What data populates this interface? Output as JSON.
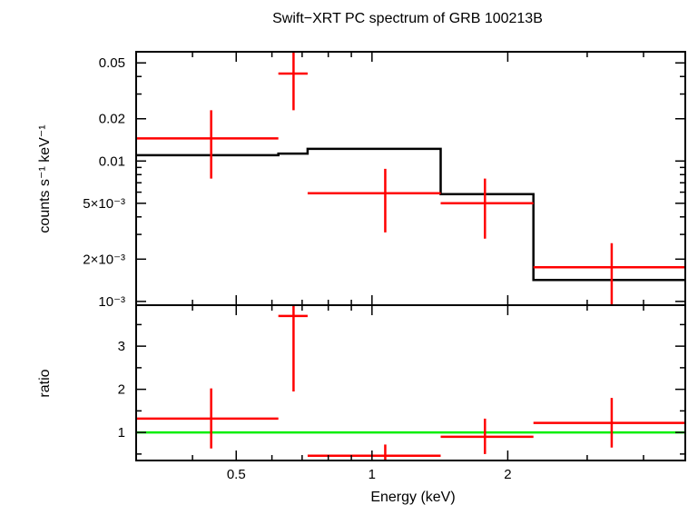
{
  "chart_data": [
    {
      "panel": "spectrum",
      "type": "step-with-errorbars",
      "title": "Swift−XRT PC spectrum of GRB 100213B",
      "xlabel": "",
      "ylabel": "counts s⁻¹ keV⁻¹",
      "xscale": "log",
      "yscale": "log",
      "xlim": [
        0.3,
        4.95
      ],
      "ylim": [
        0.00094,
        0.06
      ],
      "yticks": [
        {
          "value": 0.05,
          "label": "0.05"
        },
        {
          "value": 0.02,
          "label": "0.02"
        },
        {
          "value": 0.01,
          "label": "0.01"
        },
        {
          "value": 0.005,
          "label": "5×10⁻³"
        },
        {
          "value": 0.002,
          "label": "2×10⁻³"
        },
        {
          "value": 0.001,
          "label": "10⁻³"
        }
      ],
      "data": {
        "color": "#ff0000",
        "points": [
          {
            "x_lo": 0.3,
            "x_hi": 0.62,
            "x": 0.44,
            "y": 0.0145,
            "y_lo": 0.0075,
            "y_hi": 0.023
          },
          {
            "x_lo": 0.62,
            "x_hi": 0.72,
            "x": 0.67,
            "y": 0.042,
            "y_lo": 0.023,
            "y_hi": 0.06
          },
          {
            "x_lo": 0.72,
            "x_hi": 1.42,
            "x": 1.07,
            "y": 0.0059,
            "y_lo": 0.0031,
            "y_hi": 0.0088
          },
          {
            "x_lo": 1.42,
            "x_hi": 2.28,
            "x": 1.78,
            "y": 0.005,
            "y_lo": 0.0028,
            "y_hi": 0.0075
          },
          {
            "x_lo": 2.28,
            "x_hi": 4.95,
            "x": 3.4,
            "y": 0.00175,
            "y_lo": 0.00094,
            "y_hi": 0.0026
          }
        ]
      },
      "model": {
        "color": "#000000",
        "steps": [
          {
            "x_lo": 0.3,
            "x_hi": 0.62,
            "y": 0.011
          },
          {
            "x_lo": 0.62,
            "x_hi": 0.72,
            "y": 0.0113
          },
          {
            "x_lo": 0.72,
            "x_hi": 1.42,
            "y": 0.0122
          },
          {
            "x_lo": 1.42,
            "x_hi": 2.28,
            "y": 0.0058
          },
          {
            "x_lo": 2.28,
            "x_hi": 4.95,
            "y": 0.00142
          }
        ]
      }
    },
    {
      "panel": "ratio",
      "type": "errorbars",
      "xlabel": "Energy (keV)",
      "ylabel": "ratio",
      "xscale": "log",
      "yscale": "linear",
      "xlim": [
        0.3,
        4.95
      ],
      "ylim": [
        0.35,
        3.95
      ],
      "xticks": [
        {
          "value": 0.5,
          "label": "0.5"
        },
        {
          "value": 1,
          "label": "1"
        },
        {
          "value": 2,
          "label": "2"
        }
      ],
      "yticks": [
        {
          "value": 1,
          "label": "1"
        },
        {
          "value": 2,
          "label": "2"
        },
        {
          "value": 3,
          "label": "3"
        }
      ],
      "reference": {
        "y": 1,
        "color": "#00ee00"
      },
      "data": {
        "color": "#ff0000",
        "points": [
          {
            "x_lo": 0.3,
            "x_hi": 0.62,
            "x": 0.44,
            "y": 1.32,
            "y_lo": 0.63,
            "y_hi": 2.02
          },
          {
            "x_lo": 0.62,
            "x_hi": 0.72,
            "x": 0.67,
            "y": 3.7,
            "y_lo": 1.95,
            "y_hi": 3.95
          },
          {
            "x_lo": 0.72,
            "x_hi": 1.42,
            "x": 1.07,
            "y": 0.46,
            "y_lo": 0.37,
            "y_hi": 0.72
          },
          {
            "x_lo": 1.42,
            "x_hi": 2.28,
            "x": 1.78,
            "y": 0.9,
            "y_lo": 0.5,
            "y_hi": 1.32
          },
          {
            "x_lo": 2.28,
            "x_hi": 4.95,
            "x": 3.4,
            "y": 1.22,
            "y_lo": 0.65,
            "y_hi": 1.8
          }
        ]
      }
    }
  ]
}
